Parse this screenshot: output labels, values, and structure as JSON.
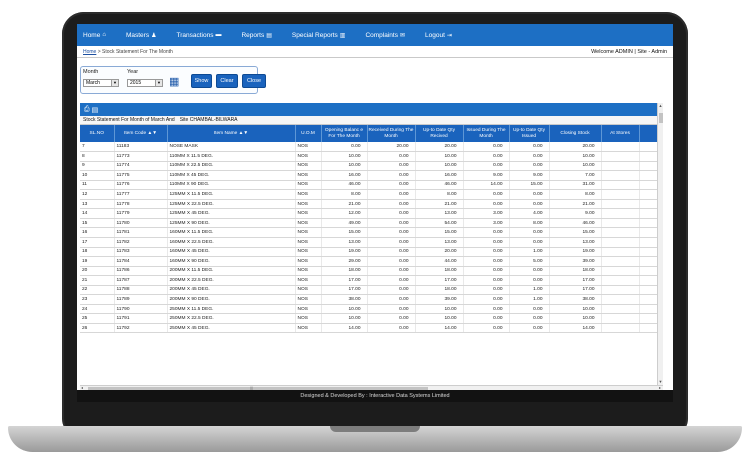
{
  "nav": [
    {
      "label": "Home",
      "icon": "home-icon",
      "glyph": "⌂"
    },
    {
      "label": "Masters",
      "icon": "user-icon",
      "glyph": "♟"
    },
    {
      "label": "Transactions",
      "icon": "card-icon",
      "glyph": "▬"
    },
    {
      "label": "Reports",
      "icon": "file-icon",
      "glyph": "▤"
    },
    {
      "label": "Special Reports",
      "icon": "files-icon",
      "glyph": "▥"
    },
    {
      "label": "Complaints",
      "icon": "envelope-icon",
      "glyph": "✉"
    },
    {
      "label": "Logout",
      "icon": "logout-icon",
      "glyph": "⇥"
    }
  ],
  "breadcrumb": {
    "home": "Home",
    "separator": " > ",
    "current": "Stock Statement For The Month"
  },
  "welcome": "Welcome ADMIN | Site - Admin",
  "filter": {
    "month_label": "Month",
    "month_value": "March",
    "year_label": "Year",
    "year_value": "2015",
    "show_label": "Show",
    "clear_label": "Clear",
    "close_label": "Close"
  },
  "report": {
    "caption": "Stock Statement For Month of March And",
    "site": "Site  CHAMBAL-BILWARA",
    "columns": [
      "SL.NO",
      "Item Code  ▲▼",
      "Item Name  ▲▼",
      "U.O.M",
      "Opening Balanc e For The Month",
      "Received During The Month",
      "Up-to Date Qty Recived",
      "Issued During The Month",
      "Up-to Date Qty Issued",
      "Closing Stock",
      "At Stores"
    ],
    "rows": [
      [
        "7",
        "11183",
        "NOSE MASK",
        "NOS",
        "0.00",
        "20.00",
        "20.00",
        "0.00",
        "0.00",
        "20.00"
      ],
      [
        "8",
        "11773",
        "110MM X 11.5 DEG.",
        "NOS",
        "10.00",
        "0.00",
        "10.00",
        "0.00",
        "0.00",
        "10.00"
      ],
      [
        "9",
        "11774",
        "110MM X 22.5 DEG.",
        "NOS",
        "10.00",
        "0.00",
        "10.00",
        "0.00",
        "0.00",
        "10.00"
      ],
      [
        "10",
        "11775",
        "110MM X 45 DEG.",
        "NOS",
        "16.00",
        "0.00",
        "16.00",
        "9.00",
        "9.00",
        "7.00"
      ],
      [
        "11",
        "11776",
        "110MM X 90 DEG.",
        "NOS",
        "46.00",
        "0.00",
        "46.00",
        "14.00",
        "15.00",
        "31.00"
      ],
      [
        "12",
        "11777",
        "125MM X 11.5 DEG.",
        "NOS",
        "8.00",
        "0.00",
        "8.00",
        "0.00",
        "0.00",
        "8.00"
      ],
      [
        "13",
        "11778",
        "125MM X 22.5 DEG.",
        "NOS",
        "21.00",
        "0.00",
        "21.00",
        "0.00",
        "0.00",
        "21.00"
      ],
      [
        "14",
        "11779",
        "125MM X 45 DEG.",
        "NOS",
        "12.00",
        "0.00",
        "13.00",
        "3.00",
        "4.00",
        "9.00"
      ],
      [
        "15",
        "11780",
        "125MM X 90 DEG.",
        "NOS",
        "49.00",
        "0.00",
        "54.00",
        "3.00",
        "8.00",
        "46.00"
      ],
      [
        "16",
        "11781",
        "160MM X 11.5 DEG.",
        "NOS",
        "15.00",
        "0.00",
        "15.00",
        "0.00",
        "0.00",
        "15.00"
      ],
      [
        "17",
        "11782",
        "160MM X 22.5 DEG.",
        "NOS",
        "13.00",
        "0.00",
        "13.00",
        "0.00",
        "0.00",
        "13.00"
      ],
      [
        "18",
        "11783",
        "160MM X 45 DEG.",
        "NOS",
        "19.00",
        "0.00",
        "20.00",
        "0.00",
        "1.00",
        "19.00"
      ],
      [
        "19",
        "11784",
        "160MM X 90 DEG.",
        "NOS",
        "29.00",
        "0.00",
        "44.00",
        "0.00",
        "5.00",
        "39.00"
      ],
      [
        "20",
        "11786",
        "200MM X 11.5 DEG.",
        "NOS",
        "18.00",
        "0.00",
        "18.00",
        "0.00",
        "0.00",
        "18.00"
      ],
      [
        "21",
        "11787",
        "200MM X 22.5 DEG.",
        "NOS",
        "17.00",
        "0.00",
        "17.00",
        "0.00",
        "0.00",
        "17.00"
      ],
      [
        "22",
        "11788",
        "200MM X 45 DEG.",
        "NOS",
        "17.00",
        "0.00",
        "18.00",
        "0.00",
        "1.00",
        "17.00"
      ],
      [
        "23",
        "11789",
        "200MM X 90 DEG.",
        "NOS",
        "38.00",
        "0.00",
        "39.00",
        "0.00",
        "1.00",
        "38.00"
      ],
      [
        "24",
        "11790",
        "250MM X 11.5 DEG.",
        "NOS",
        "10.00",
        "0.00",
        "10.00",
        "0.00",
        "0.00",
        "10.00"
      ],
      [
        "25",
        "11791",
        "250MM X 22.5 DEG.",
        "NOS",
        "10.00",
        "0.00",
        "10.00",
        "0.00",
        "0.00",
        "10.00"
      ],
      [
        "26",
        "11792",
        "250MM X 45 DEG.",
        "NOS",
        "14.00",
        "0.00",
        "14.00",
        "0.00",
        "0.00",
        "14.00"
      ]
    ]
  },
  "footer": "Designed & Developed By : Interactive Data Systems Limited",
  "colors": {
    "accent": "#1d6fc4",
    "header": "#1a63bd",
    "footer": "#121212"
  }
}
